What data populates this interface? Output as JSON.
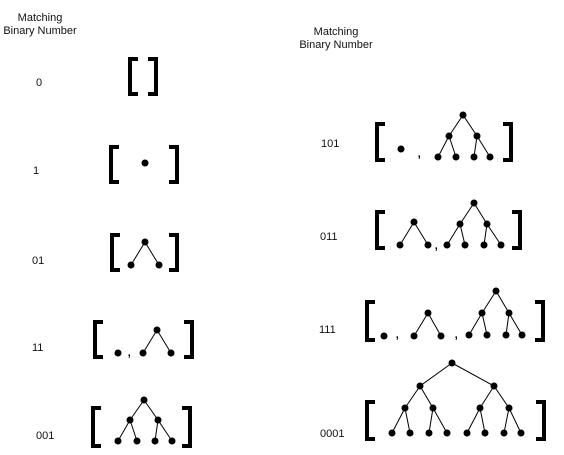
{
  "headers": {
    "left": [
      "Matching",
      "Binary Number"
    ],
    "right": [
      "Matching",
      "Binary Number"
    ]
  },
  "rows": [
    {
      "id": "r0",
      "number": "0"
    },
    {
      "id": "r1",
      "number": "1"
    },
    {
      "id": "r01",
      "number": "01"
    },
    {
      "id": "r11",
      "number": "11"
    },
    {
      "id": "r001",
      "number": "001"
    },
    {
      "id": "r101",
      "number": "101"
    },
    {
      "id": "r011",
      "number": "011"
    },
    {
      "id": "r111",
      "number": "111"
    },
    {
      "id": "r0001",
      "number": "0001"
    }
  ],
  "separator": ","
}
